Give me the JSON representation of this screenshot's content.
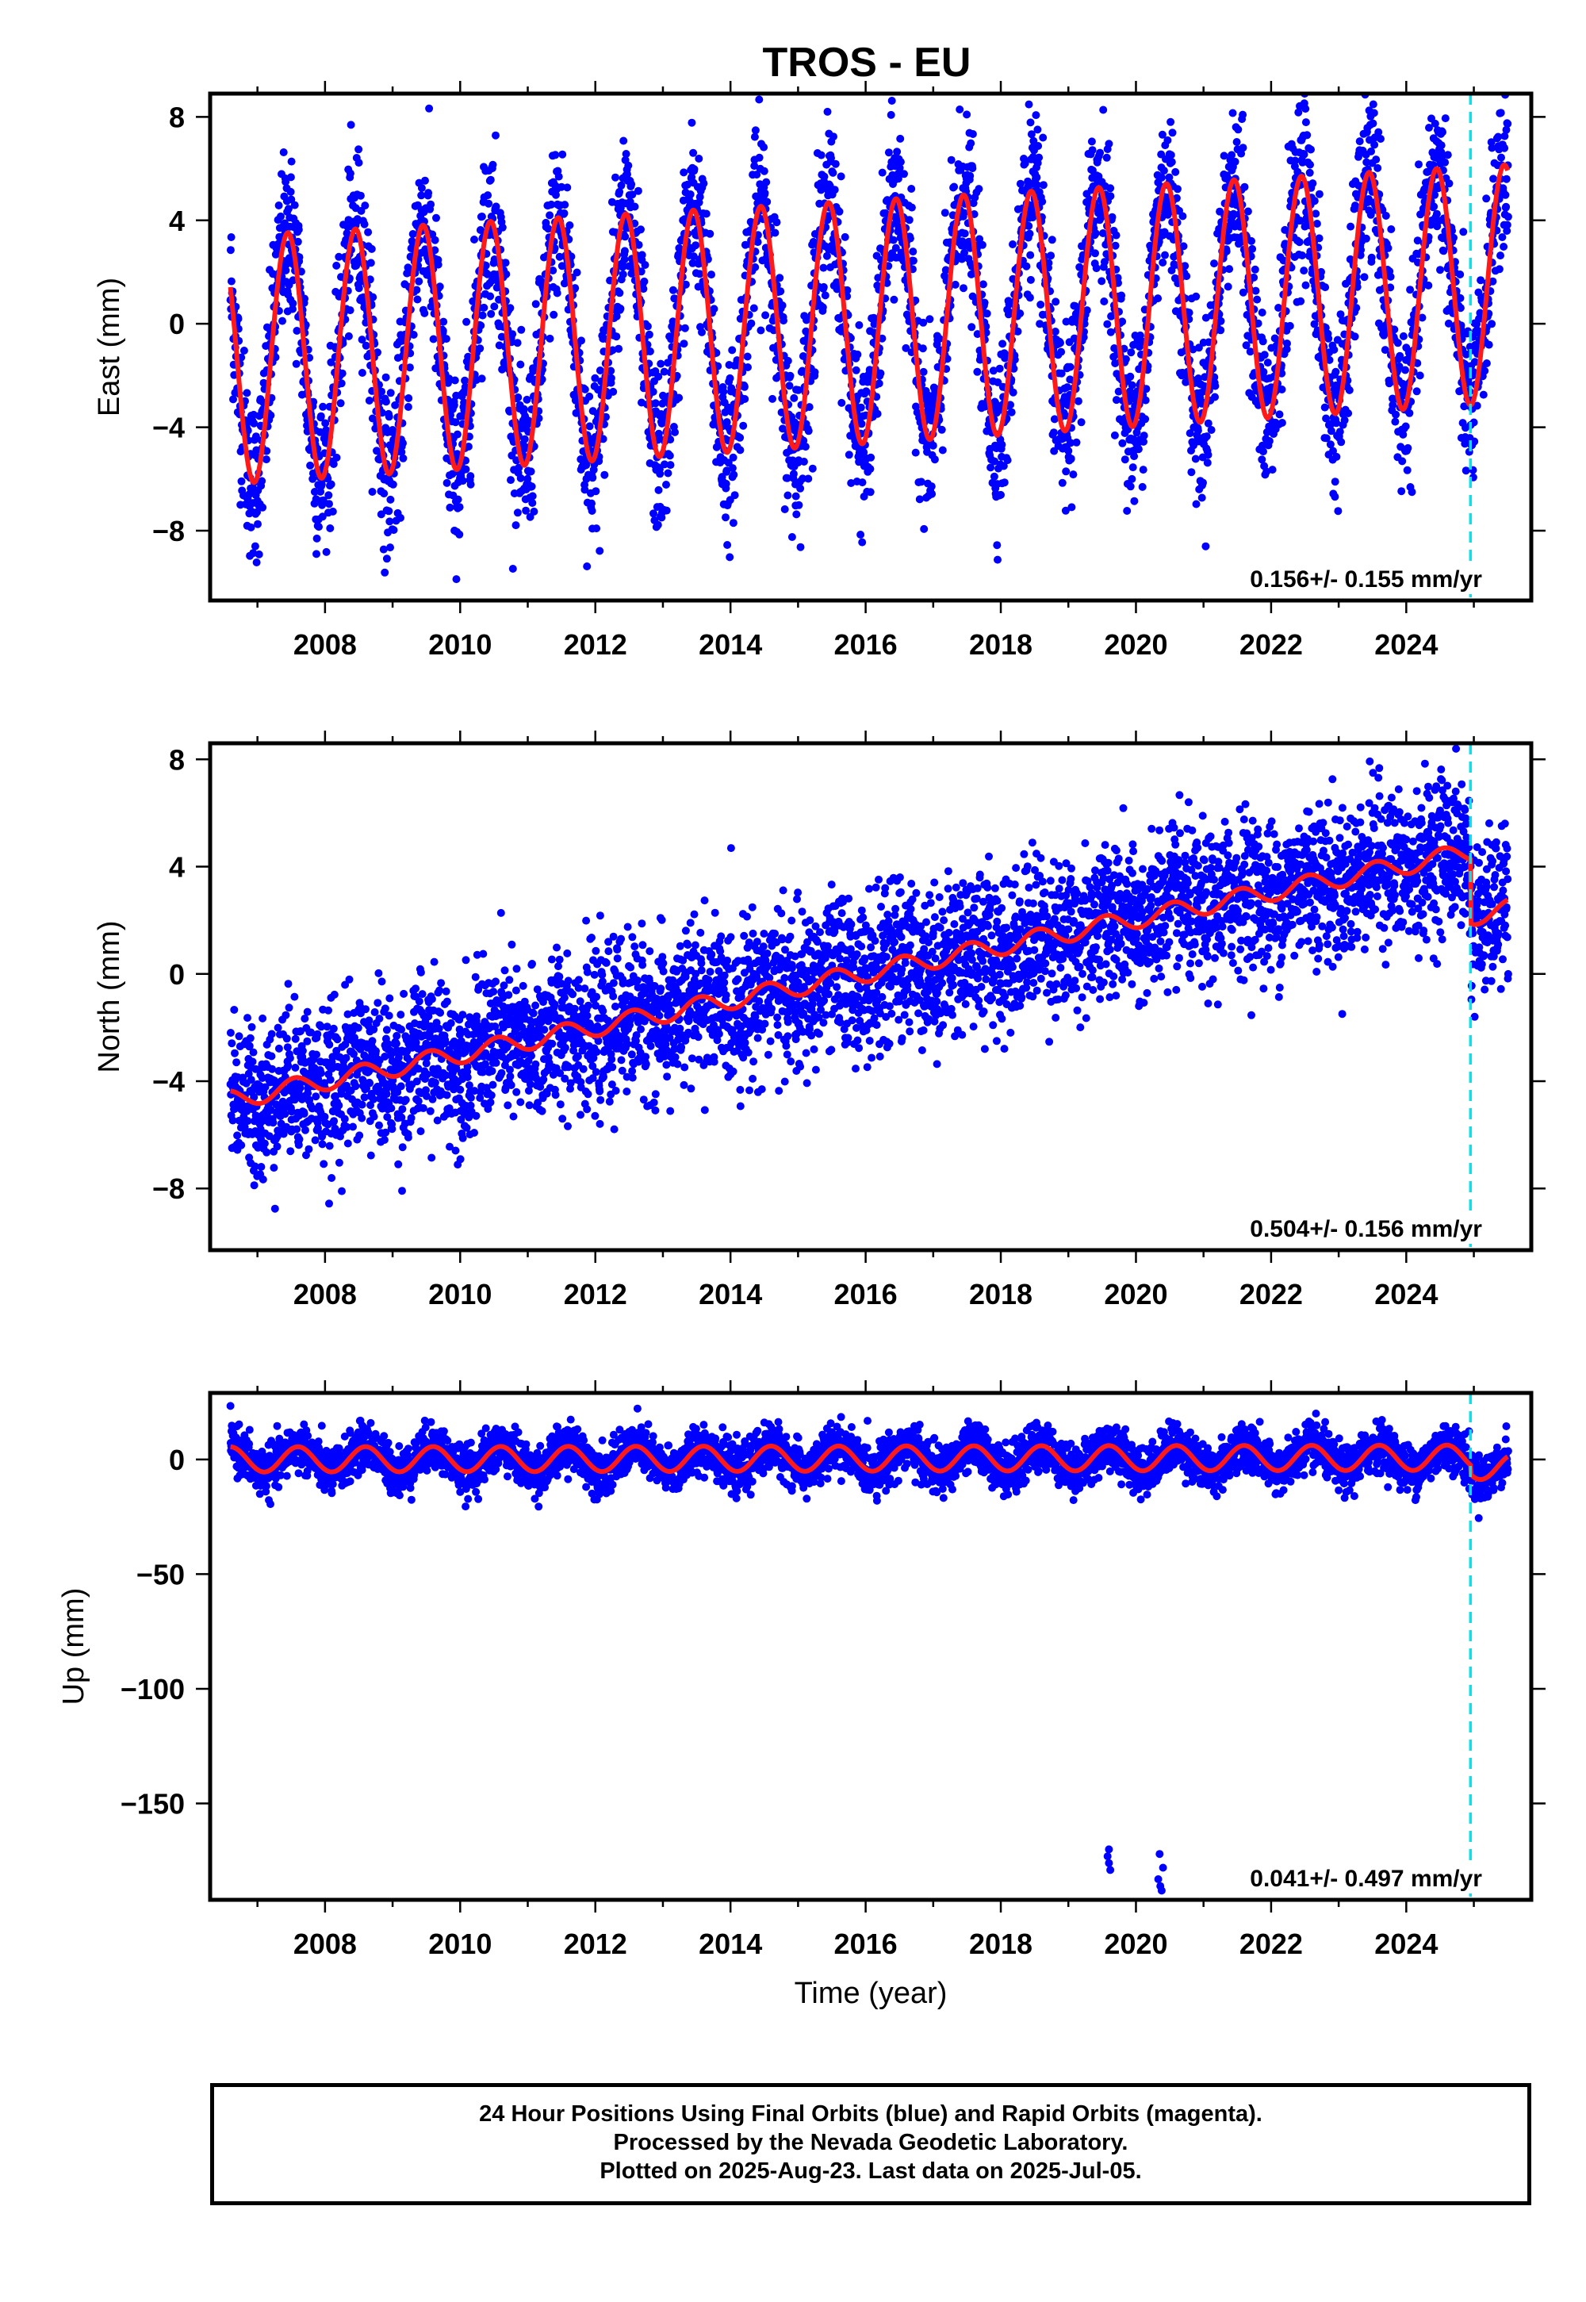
{
  "title": "TROS - EU",
  "colors": {
    "final_points": "#0000ff",
    "model": "#ff1a1a",
    "break_line": "#00e5ee"
  },
  "chart_data": [
    {
      "type": "scatter",
      "ylabel": "East (mm)",
      "xlabel": "",
      "xlim": [
        2006.3,
        2025.85
      ],
      "ylim": [
        -10.7,
        8.9
      ],
      "xticks": [
        2008,
        2010,
        2012,
        2014,
        2016,
        2018,
        2020,
        2022,
        2024
      ],
      "yticks": [
        8,
        4,
        0,
        -4,
        -8
      ],
      "ytick_labels": [
        "8",
        "4",
        "0",
        "−4",
        "−8"
      ],
      "rate": "0.156+/- 0.155 mm/yr",
      "break_x": 2024.95,
      "model": {
        "offset": -1.4,
        "trend": 0.156,
        "amp_start": 4.8,
        "amp_end": 4.6,
        "phase_peak": 0.45,
        "post_break_offset": 0.0
      },
      "scatter_sd": 1.6
    },
    {
      "type": "scatter",
      "ylabel": "North (mm)",
      "xlabel": "",
      "xlim": [
        2006.3,
        2025.85
      ],
      "ylim": [
        -10.3,
        8.6
      ],
      "xticks": [
        2008,
        2010,
        2012,
        2014,
        2016,
        2018,
        2020,
        2022,
        2024
      ],
      "yticks": [
        8,
        4,
        0,
        -4,
        -8
      ],
      "ytick_labels": [
        "8",
        "4",
        "0",
        "−4",
        "−8"
      ],
      "rate": "0.504+/- 0.156 mm/yr",
      "break_x": 2024.95,
      "model": {
        "offset": -4.7,
        "trend": 0.504,
        "amp_start": 0.35,
        "amp_end": 0.35,
        "phase_peak": 0.55,
        "post_break_offset": -2.4
      },
      "scatter_sd": 1.4
    },
    {
      "type": "scatter",
      "ylabel": "Up (mm)",
      "xlabel": "Time (year)",
      "xlim": [
        2006.3,
        2025.85
      ],
      "ylim": [
        -192,
        29
      ],
      "xticks": [
        2008,
        2010,
        2012,
        2014,
        2016,
        2018,
        2020,
        2022,
        2024
      ],
      "yticks": [
        0,
        -50,
        -100,
        -150
      ],
      "ytick_labels": [
        "0",
        "−50",
        "−100",
        "−150"
      ],
      "rate": "0.041+/- 0.497 mm/yr",
      "break_x": 2024.95,
      "model": {
        "offset": 0.0,
        "trend": 0.041,
        "amp_start": 5.5,
        "amp_end": 5.5,
        "phase_peak": 0.6,
        "post_break_offset": -4.0
      },
      "scatter_sd": 5.0,
      "outliers": [
        [
          2019.6,
          -170
        ],
        [
          2019.6,
          -176
        ],
        [
          2019.62,
          -179
        ],
        [
          2019.58,
          -173
        ],
        [
          2020.35,
          -172
        ],
        [
          2020.4,
          -178
        ],
        [
          2020.33,
          -183
        ],
        [
          2020.38,
          -188
        ],
        [
          2020.36,
          -186
        ]
      ]
    }
  ],
  "caption": {
    "line1": "24 Hour Positions Using Final Orbits (blue) and Rapid Orbits (magenta).",
    "line2": "Processed by the Nevada Geodetic Laboratory.",
    "line3": "Plotted on 2025-Aug-23. Last data on 2025-Jul-05."
  }
}
